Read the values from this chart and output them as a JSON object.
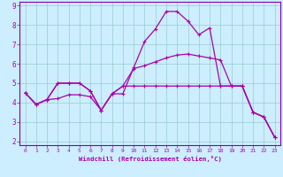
{
  "xlabel": "Windchill (Refroidissement éolien,°C)",
  "background_color": "#cceeff",
  "grid_color": "#99cccc",
  "line_color": "#aa00aa",
  "border_color": "#8800aa",
  "xlim": [
    -0.5,
    23.5
  ],
  "ylim": [
    1.8,
    9.2
  ],
  "xticks": [
    0,
    1,
    2,
    3,
    4,
    5,
    6,
    7,
    8,
    9,
    10,
    11,
    12,
    13,
    14,
    15,
    16,
    17,
    18,
    19,
    20,
    21,
    22,
    23
  ],
  "yticks": [
    2,
    3,
    4,
    5,
    6,
    7,
    8,
    9
  ],
  "line1_x": [
    0,
    1,
    2,
    3,
    4,
    5,
    6,
    7,
    8,
    9,
    10,
    11,
    12,
    13,
    14,
    15,
    16,
    17,
    18,
    19,
    20,
    21,
    22,
    23
  ],
  "line1_y": [
    4.5,
    3.9,
    4.15,
    4.2,
    4.4,
    4.4,
    4.3,
    3.6,
    4.45,
    4.85,
    5.75,
    5.9,
    6.1,
    6.3,
    6.45,
    6.5,
    6.4,
    6.3,
    6.2,
    4.85,
    4.85,
    3.5,
    3.25,
    2.2
  ],
  "line2_x": [
    0,
    1,
    2,
    3,
    4,
    5,
    6,
    7,
    8,
    9,
    10,
    11,
    12,
    13,
    14,
    15,
    16,
    17,
    18,
    19,
    20,
    21,
    22,
    23
  ],
  "line2_y": [
    4.5,
    3.9,
    4.15,
    5.0,
    5.0,
    5.0,
    4.6,
    3.6,
    4.45,
    4.85,
    4.85,
    4.85,
    4.85,
    4.85,
    4.85,
    4.85,
    4.85,
    4.85,
    4.85,
    4.85,
    4.85,
    3.5,
    3.25,
    2.2
  ],
  "line3_x": [
    0,
    1,
    2,
    3,
    4,
    5,
    6,
    7,
    8,
    9,
    10,
    11,
    12,
    13,
    14,
    15,
    16,
    17,
    18,
    19,
    20,
    21,
    22,
    23
  ],
  "line3_y": [
    4.5,
    3.9,
    4.15,
    5.0,
    5.0,
    5.0,
    4.6,
    3.6,
    4.45,
    4.45,
    5.8,
    7.15,
    7.8,
    8.7,
    8.7,
    8.2,
    7.5,
    7.85,
    4.85,
    4.85,
    4.85,
    3.5,
    3.25,
    2.2
  ]
}
